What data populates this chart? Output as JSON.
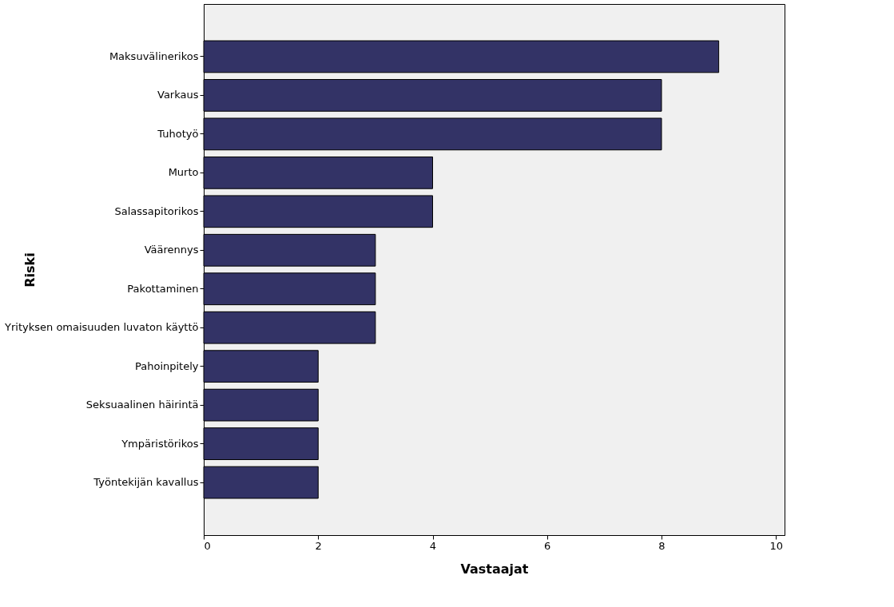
{
  "chart_data": {
    "type": "bar",
    "orientation": "horizontal",
    "xlabel": "Vastaajat",
    "ylabel": "Riski",
    "categories": [
      "Maksuvälinerikos",
      "Varkaus",
      "Tuhotyö",
      "Murto",
      "Salassapitorikos",
      "Väärennys",
      "Pakottaminen",
      "Yrityksen omaisuuden luvaton käyttö",
      "Pahoinpitely",
      "Seksuaalinen häirintä",
      "Ympäristörikos",
      "Työntekijän kavallus"
    ],
    "values": [
      9,
      8,
      8,
      4,
      4,
      3,
      3,
      3,
      2,
      2,
      2,
      2
    ],
    "color": "#333366",
    "xlim": [
      0,
      10.15
    ],
    "xticks": [
      0,
      2,
      4,
      6,
      8,
      10
    ],
    "grid": false
  }
}
